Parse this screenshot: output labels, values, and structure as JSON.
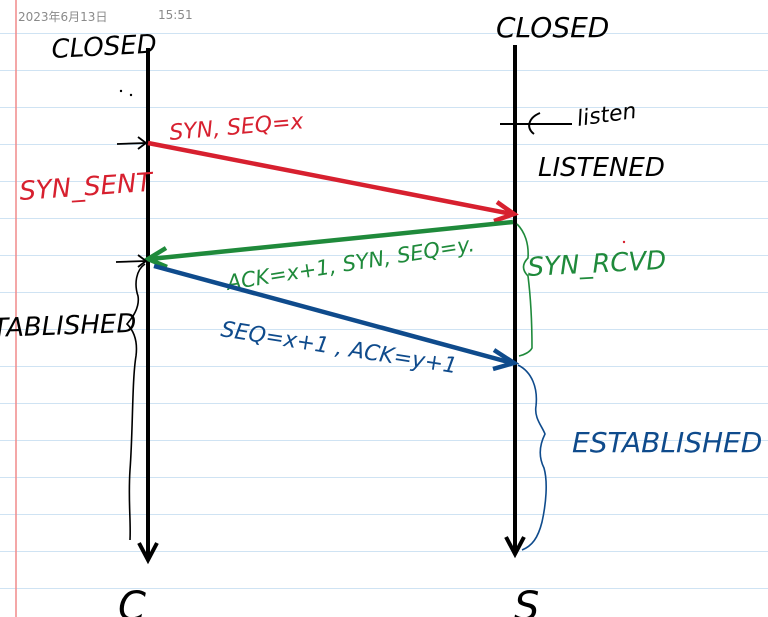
{
  "header": {
    "date": "2023年6月13日",
    "time": "15:51"
  },
  "client": {
    "top_state": "CLOSED",
    "sent_state": "SYN_SENT",
    "established_state": "ESTABLISHED",
    "label": "C"
  },
  "server": {
    "top_state": "CLOSED",
    "listen_note": "listen",
    "listened_state": "LISTENED",
    "rcvd_state": "SYN_RCVD",
    "established_state": "ESTABLISHED",
    "label": "S"
  },
  "messages": [
    {
      "text": "SYN, SEQ=x",
      "color": "#d7202f"
    },
    {
      "text": "ACK=x+1, SYN, SEQ=y.",
      "color": "#1f8a3b"
    },
    {
      "text": "SEQ=x+1 , ACK=y+1",
      "color": "#0f4b8c"
    }
  ],
  "colors": {
    "ink": "#000000",
    "red": "#d7202f",
    "green": "#1f8a3b",
    "blue": "#0f4b8c",
    "margin_line": "#f08a8a",
    "ruled_line": "#cfe3f3",
    "header_text": "#8a8a8a"
  }
}
